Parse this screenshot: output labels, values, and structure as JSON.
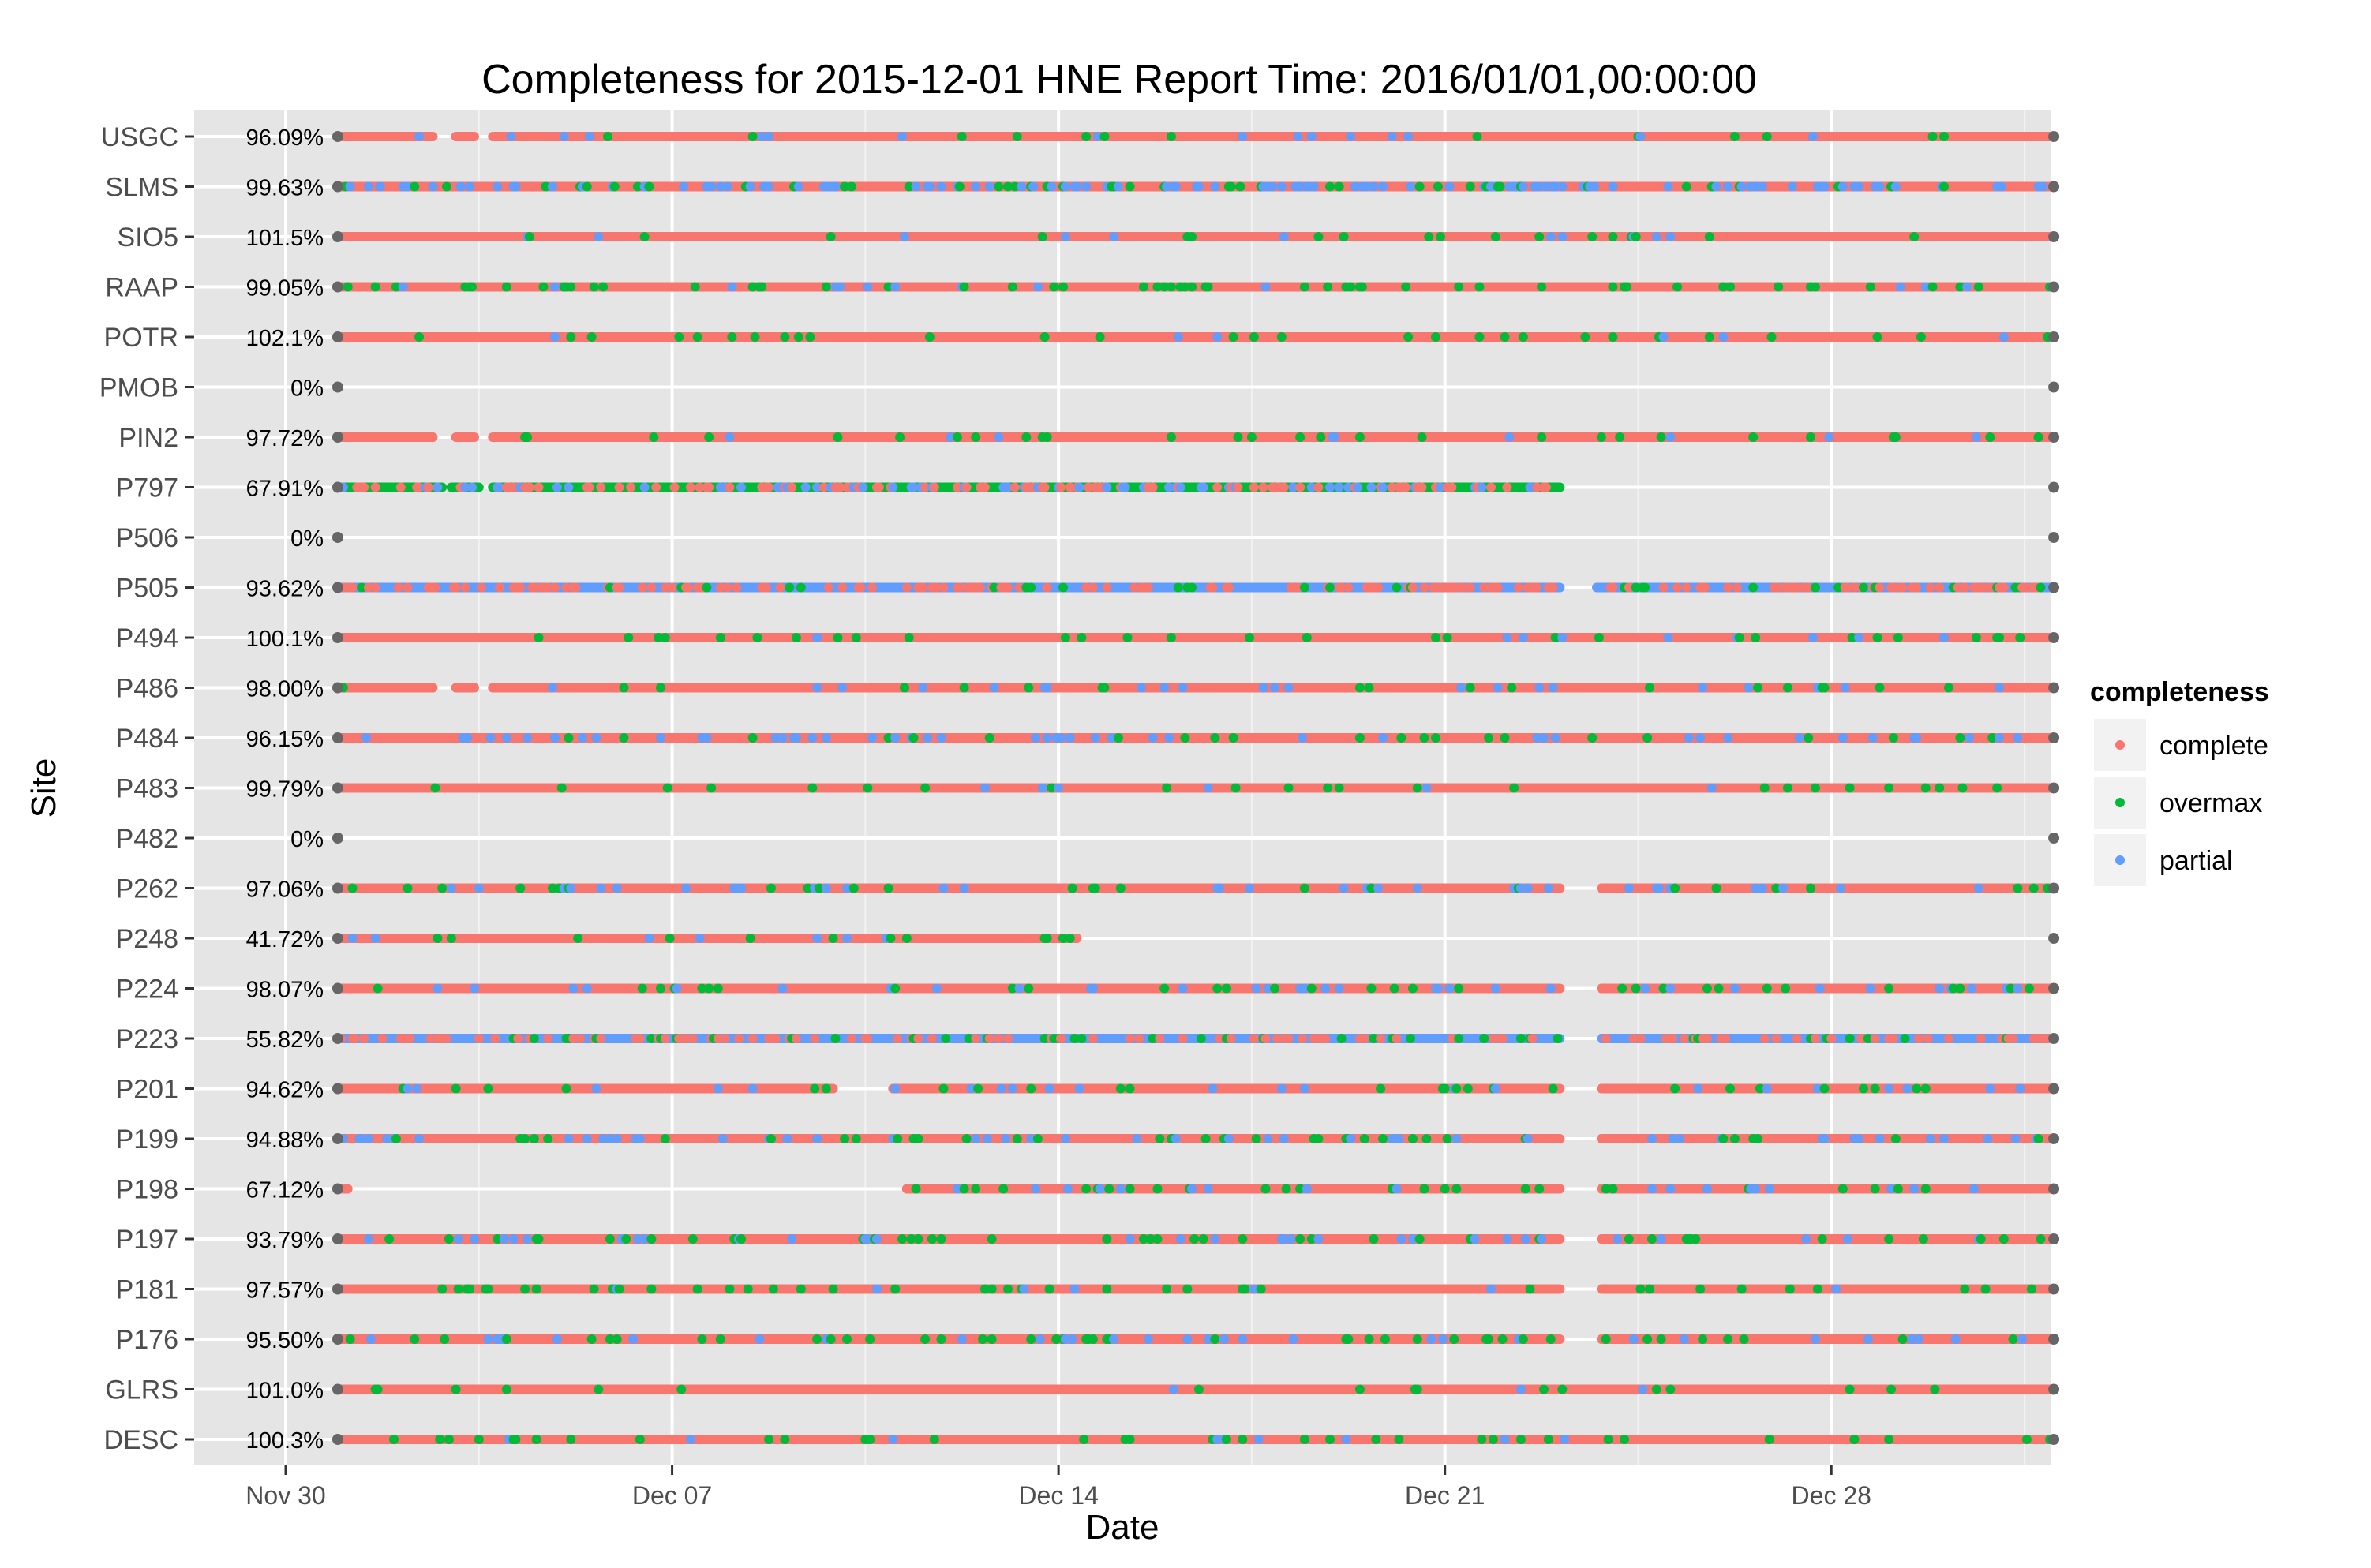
{
  "chart_data": {
    "type": "scatter",
    "title": "Completeness for  2015-12-01 HNE  Report Time:  2016/01/01,00:00:00",
    "xlabel": "Date",
    "ylabel": "Site",
    "x_range": [
      "2015-11-30",
      "2016-01-01"
    ],
    "x_ticks": [
      "Nov 30",
      "Dec 07",
      "Dec 14",
      "Dec 21",
      "Dec 28"
    ],
    "x_tick_dates": [
      "2015-11-30",
      "2015-12-07",
      "2015-12-14",
      "2015-12-21",
      "2015-12-28"
    ],
    "grid": true,
    "legend": {
      "title": "completeness",
      "position": "right",
      "entries": [
        {
          "label": "complete",
          "color": "#F8766D"
        },
        {
          "label": "overmax",
          "color": "#00BA38"
        },
        {
          "label": "partial",
          "color": "#619CFF"
        }
      ]
    },
    "marker_color": "#666666",
    "sites": [
      {
        "name": "USGC",
        "pct": "96.09%",
        "fill": "complete",
        "mix": [
          0.9,
          0.04,
          0.06
        ],
        "gaps": [
          [
            "2015-12-02 16:00",
            "2015-12-03 02:00"
          ],
          [
            "2015-12-03 10:00",
            "2015-12-03 18:00"
          ]
        ]
      },
      {
        "name": "SLMS",
        "pct": "99.63%",
        "fill": "complete",
        "mix": [
          0.6,
          0.12,
          0.28
        ],
        "gaps": []
      },
      {
        "name": "SIO5",
        "pct": "101.5%",
        "fill": "complete",
        "mix": [
          0.95,
          0.03,
          0.02
        ],
        "gaps": []
      },
      {
        "name": "RAAP",
        "pct": "99.05%",
        "fill": "complete",
        "mix": [
          0.85,
          0.12,
          0.03
        ],
        "gaps": []
      },
      {
        "name": "POTR",
        "pct": "102.1%",
        "fill": "complete",
        "mix": [
          0.93,
          0.06,
          0.01
        ],
        "gaps": []
      },
      {
        "name": "PMOB",
        "pct": "0%",
        "fill": "none",
        "mix": [
          0,
          0,
          0
        ],
        "gaps": []
      },
      {
        "name": "PIN2",
        "pct": "97.72%",
        "fill": "complete",
        "mix": [
          0.92,
          0.05,
          0.03
        ],
        "gaps": [
          [
            "2015-12-02 16:00",
            "2015-12-03 02:00"
          ],
          [
            "2015-12-03 10:00",
            "2015-12-03 18:00"
          ]
        ]
      },
      {
        "name": "P797",
        "pct": "67.91%",
        "fill": "overmax",
        "mix": [
          0.3,
          0.5,
          0.2
        ],
        "gaps": [
          [
            "2015-12-02 20:00",
            "2015-12-03 00:00"
          ],
          [
            "2015-12-03 12:00",
            "2015-12-03 18:00"
          ],
          [
            "2015-12-23 02:00",
            "2016-01-01 00:00"
          ]
        ]
      },
      {
        "name": "P506",
        "pct": "0%",
        "fill": "none",
        "mix": [
          0,
          0,
          0
        ],
        "gaps": []
      },
      {
        "name": "P505",
        "pct": "93.62%",
        "fill": "partial",
        "mix": [
          0.35,
          0.05,
          0.6
        ],
        "gaps": [
          [
            "2015-12-23 02:00",
            "2015-12-23 18:00"
          ]
        ]
      },
      {
        "name": "P494",
        "pct": "100.1%",
        "fill": "complete",
        "mix": [
          0.9,
          0.08,
          0.02
        ],
        "gaps": []
      },
      {
        "name": "P486",
        "pct": "98.00%",
        "fill": "complete",
        "mix": [
          0.9,
          0.06,
          0.04
        ],
        "gaps": [
          [
            "2015-12-02 16:00",
            "2015-12-03 02:00"
          ],
          [
            "2015-12-03 10:00",
            "2015-12-03 18:00"
          ]
        ]
      },
      {
        "name": "P484",
        "pct": "96.15%",
        "fill": "complete",
        "mix": [
          0.82,
          0.06,
          0.12
        ],
        "gaps": []
      },
      {
        "name": "P483",
        "pct": "99.79%",
        "fill": "complete",
        "mix": [
          0.93,
          0.05,
          0.02
        ],
        "gaps": []
      },
      {
        "name": "P482",
        "pct": "0%",
        "fill": "none",
        "mix": [
          0,
          0,
          0
        ],
        "gaps": []
      },
      {
        "name": "P262",
        "pct": "97.06%",
        "fill": "complete",
        "mix": [
          0.85,
          0.08,
          0.07
        ],
        "gaps": [
          [
            "2015-12-23 02:00",
            "2015-12-23 20:00"
          ]
        ]
      },
      {
        "name": "P248",
        "pct": "41.72%",
        "fill": "complete",
        "mix": [
          0.8,
          0.12,
          0.08
        ],
        "gaps": [
          [
            "2015-12-14 08:00",
            "2016-01-01 00:00"
          ]
        ]
      },
      {
        "name": "P224",
        "pct": "98.07%",
        "fill": "complete",
        "mix": [
          0.86,
          0.08,
          0.06
        ],
        "gaps": [
          [
            "2015-12-23 02:00",
            "2015-12-23 20:00"
          ]
        ]
      },
      {
        "name": "P223",
        "pct": "55.82%",
        "fill": "partial",
        "mix": [
          0.3,
          0.1,
          0.6
        ],
        "gaps": [
          [
            "2015-12-23 02:00",
            "2015-12-23 20:00"
          ]
        ]
      },
      {
        "name": "P201",
        "pct": "94.62%",
        "fill": "complete",
        "mix": [
          0.86,
          0.08,
          0.06
        ],
        "gaps": [
          [
            "2015-12-09 22:00",
            "2015-12-11 00:00"
          ],
          [
            "2015-12-23 02:00",
            "2015-12-23 20:00"
          ]
        ]
      },
      {
        "name": "P199",
        "pct": "94.88%",
        "fill": "complete",
        "mix": [
          0.8,
          0.08,
          0.12
        ],
        "gaps": [
          [
            "2015-12-23 02:00",
            "2015-12-23 20:00"
          ]
        ]
      },
      {
        "name": "P198",
        "pct": "67.12%",
        "fill": "complete",
        "mix": [
          0.78,
          0.12,
          0.1
        ],
        "gaps": [
          [
            "2015-12-01 03:00",
            "2015-12-11 06:00"
          ],
          [
            "2015-12-23 02:00",
            "2015-12-23 20:00"
          ]
        ]
      },
      {
        "name": "P197",
        "pct": "93.79%",
        "fill": "complete",
        "mix": [
          0.82,
          0.1,
          0.08
        ],
        "gaps": [
          [
            "2015-12-23 02:00",
            "2015-12-23 20:00"
          ]
        ]
      },
      {
        "name": "P181",
        "pct": "97.57%",
        "fill": "complete",
        "mix": [
          0.9,
          0.07,
          0.03
        ],
        "gaps": [
          [
            "2015-12-23 02:00",
            "2015-12-23 20:00"
          ]
        ]
      },
      {
        "name": "P176",
        "pct": "95.50%",
        "fill": "complete",
        "mix": [
          0.78,
          0.12,
          0.1
        ],
        "gaps": [
          [
            "2015-12-23 02:00",
            "2015-12-23 20:00"
          ]
        ]
      },
      {
        "name": "GLRS",
        "pct": "101.0%",
        "fill": "complete",
        "mix": [
          0.97,
          0.02,
          0.01
        ],
        "gaps": []
      },
      {
        "name": "DESC",
        "pct": "100.3%",
        "fill": "complete",
        "mix": [
          0.9,
          0.08,
          0.02
        ],
        "gaps": []
      }
    ]
  }
}
